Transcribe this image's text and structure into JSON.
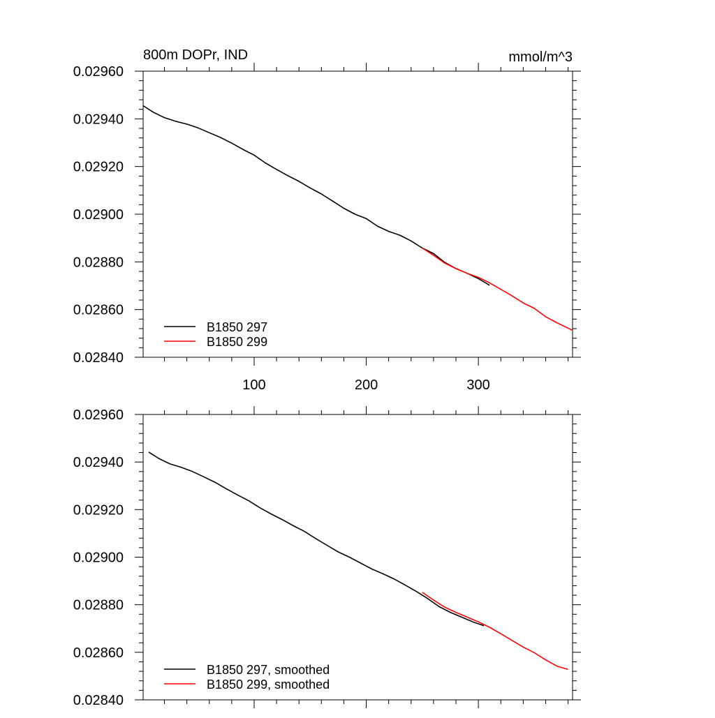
{
  "colors": {
    "series_a": "#000000",
    "series_b": "#ff0000",
    "axis": "#000000"
  },
  "chart_data": [
    {
      "type": "line",
      "title": "800m DOPr, IND",
      "units": "mmol/m^3",
      "xlim": [
        1,
        384
      ],
      "ylim": [
        0.0284,
        0.0296
      ],
      "x_ticks": [
        100,
        200,
        300
      ],
      "x_tick_labels": [
        "100",
        "200",
        "300"
      ],
      "y_ticks": [
        0.0284,
        0.0286,
        0.0288,
        0.029,
        0.0292,
        0.0294,
        0.0296
      ],
      "y_tick_labels": [
        "0.02840",
        "0.02860",
        "0.02880",
        "0.02900",
        "0.02920",
        "0.02940",
        "0.02960"
      ],
      "grid": false,
      "legend_position": "bottom-left",
      "series": [
        {
          "name": "B1850 297",
          "color": "#000000",
          "x": [
            1,
            10,
            20,
            30,
            40,
            50,
            60,
            70,
            80,
            90,
            100,
            110,
            120,
            130,
            140,
            150,
            160,
            170,
            180,
            190,
            200,
            210,
            220,
            230,
            240,
            250,
            260,
            270,
            280,
            290,
            300,
            310
          ],
          "y": [
            0.029455,
            0.029428,
            0.029405,
            0.02939,
            0.029378,
            0.029362,
            0.029342,
            0.029322,
            0.029298,
            0.029272,
            0.029248,
            0.029215,
            0.029188,
            0.029162,
            0.029138,
            0.02911,
            0.029085,
            0.029055,
            0.029025,
            0.029,
            0.028982,
            0.02895,
            0.028928,
            0.028912,
            0.028888,
            0.028858,
            0.028835,
            0.028798,
            0.028772,
            0.028752,
            0.02873,
            0.028702
          ]
        },
        {
          "name": "B1850 299",
          "color": "#ff0000",
          "x": [
            250,
            260,
            270,
            280,
            290,
            300,
            310,
            320,
            330,
            340,
            350,
            360,
            370,
            380,
            384
          ],
          "y": [
            0.028858,
            0.028828,
            0.028795,
            0.028772,
            0.028752,
            0.028735,
            0.028712,
            0.028685,
            0.028658,
            0.028628,
            0.028605,
            0.02857,
            0.028545,
            0.028522,
            0.028513
          ]
        }
      ]
    },
    {
      "type": "line",
      "xlim": [
        1,
        384
      ],
      "ylim": [
        0.0284,
        0.0296
      ],
      "x_ticks": [
        100,
        200,
        300
      ],
      "y_ticks": [
        0.0284,
        0.0286,
        0.0288,
        0.029,
        0.0292,
        0.0294,
        0.0296
      ],
      "y_tick_labels": [
        "0.02840",
        "0.02860",
        "0.02880",
        "0.02900",
        "0.02920",
        "0.02940",
        "0.02960"
      ],
      "grid": false,
      "legend_position": "bottom-left",
      "series": [
        {
          "name": "B1850 297, smoothed",
          "color": "#000000",
          "x": [
            6,
            15,
            25,
            35,
            45,
            55,
            65,
            75,
            85,
            95,
            105,
            115,
            125,
            135,
            145,
            155,
            165,
            175,
            185,
            195,
            205,
            215,
            225,
            235,
            245,
            255,
            265,
            275,
            285,
            295,
            305
          ],
          "y": [
            0.029442,
            0.029415,
            0.029392,
            0.029378,
            0.02936,
            0.029338,
            0.029315,
            0.029288,
            0.029262,
            0.029238,
            0.029208,
            0.029182,
            0.029158,
            0.029132,
            0.029108,
            0.029078,
            0.02905,
            0.029022,
            0.029,
            0.028975,
            0.02895,
            0.02893,
            0.028908,
            0.028882,
            0.028855,
            0.028825,
            0.028792,
            0.028768,
            0.028748,
            0.028728,
            0.028712
          ]
        },
        {
          "name": "B1850 299, smoothed",
          "color": "#ff0000",
          "x": [
            250,
            260,
            270,
            280,
            290,
            300,
            310,
            320,
            330,
            340,
            350,
            360,
            370,
            380
          ],
          "y": [
            0.028852,
            0.02882,
            0.02879,
            0.028768,
            0.028748,
            0.028728,
            0.028705,
            0.028678,
            0.02865,
            0.028622,
            0.028598,
            0.028568,
            0.028542,
            0.028528
          ]
        }
      ]
    }
  ]
}
